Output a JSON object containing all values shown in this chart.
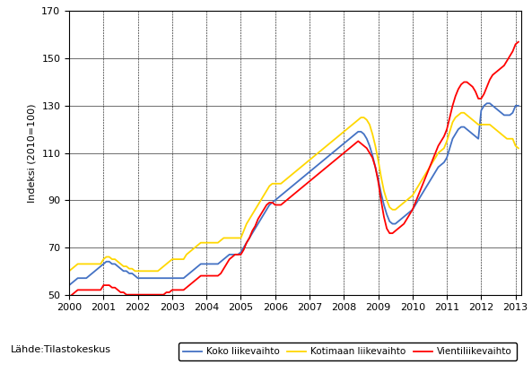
{
  "ylabel": "Indeksi (2010=100)",
  "source_label": "Lähde:Tilastokeskus",
  "ylim": [
    50,
    170
  ],
  "yticks": [
    50,
    70,
    90,
    110,
    130,
    150,
    170
  ],
  "xlim": [
    2000.0,
    2013.17
  ],
  "xticks": [
    2000,
    2001,
    2002,
    2003,
    2004,
    2005,
    2006,
    2007,
    2008,
    2009,
    2010,
    2011,
    2012,
    2013
  ],
  "line_colors": {
    "koko": "#4472C4",
    "kotimaan": "#FFD700",
    "vienti": "#FF0000"
  },
  "legend_labels": [
    "Koko liikevaihto",
    "Kotimaan liikevaihto",
    "Vientiliikevaihto"
  ],
  "koko_x": [
    2000.0,
    2000.083,
    2000.167,
    2000.25,
    2000.333,
    2000.417,
    2000.5,
    2000.583,
    2000.667,
    2000.75,
    2000.833,
    2000.917,
    2001.0,
    2001.083,
    2001.167,
    2001.25,
    2001.333,
    2001.417,
    2001.5,
    2001.583,
    2001.667,
    2001.75,
    2001.833,
    2001.917,
    2002.0,
    2002.083,
    2002.167,
    2002.25,
    2002.333,
    2002.417,
    2002.5,
    2002.583,
    2002.667,
    2002.75,
    2002.833,
    2002.917,
    2003.0,
    2003.083,
    2003.167,
    2003.25,
    2003.333,
    2003.417,
    2003.5,
    2003.583,
    2003.667,
    2003.75,
    2003.833,
    2003.917,
    2004.0,
    2004.083,
    2004.167,
    2004.25,
    2004.333,
    2004.417,
    2004.5,
    2004.583,
    2004.667,
    2004.75,
    2004.833,
    2004.917,
    2005.0,
    2005.083,
    2005.167,
    2005.25,
    2005.333,
    2005.417,
    2005.5,
    2005.583,
    2005.667,
    2005.75,
    2005.833,
    2005.917,
    2006.0,
    2006.083,
    2006.167,
    2006.25,
    2006.333,
    2006.417,
    2006.5,
    2006.583,
    2006.667,
    2006.75,
    2006.833,
    2006.917,
    2007.0,
    2007.083,
    2007.167,
    2007.25,
    2007.333,
    2007.417,
    2007.5,
    2007.583,
    2007.667,
    2007.75,
    2007.833,
    2007.917,
    2008.0,
    2008.083,
    2008.167,
    2008.25,
    2008.333,
    2008.417,
    2008.5,
    2008.583,
    2008.667,
    2008.75,
    2008.833,
    2008.917,
    2009.0,
    2009.083,
    2009.167,
    2009.25,
    2009.333,
    2009.417,
    2009.5,
    2009.583,
    2009.667,
    2009.75,
    2009.833,
    2009.917,
    2010.0,
    2010.083,
    2010.167,
    2010.25,
    2010.333,
    2010.417,
    2010.5,
    2010.583,
    2010.667,
    2010.75,
    2010.833,
    2010.917,
    2011.0,
    2011.083,
    2011.167,
    2011.25,
    2011.333,
    2011.417,
    2011.5,
    2011.583,
    2011.667,
    2011.75,
    2011.833,
    2011.917,
    2012.0,
    2012.083,
    2012.167,
    2012.25,
    2012.333,
    2012.417,
    2012.5,
    2012.583,
    2012.667,
    2012.75,
    2012.833,
    2012.917,
    2013.0,
    2013.083
  ],
  "koko_y": [
    54,
    55,
    56,
    57,
    57,
    57,
    57,
    58,
    59,
    60,
    61,
    62,
    63,
    64,
    64,
    63,
    63,
    62,
    61,
    60,
    60,
    59,
    59,
    58,
    57,
    57,
    57,
    57,
    57,
    57,
    57,
    57,
    57,
    57,
    57,
    57,
    57,
    57,
    57,
    57,
    57,
    58,
    59,
    60,
    61,
    62,
    63,
    63,
    63,
    63,
    63,
    63,
    63,
    64,
    65,
    66,
    67,
    67,
    67,
    67,
    68,
    70,
    72,
    74,
    76,
    78,
    80,
    82,
    84,
    86,
    88,
    89,
    90,
    91,
    92,
    93,
    94,
    95,
    96,
    97,
    98,
    99,
    100,
    101,
    102,
    103,
    104,
    105,
    106,
    107,
    108,
    109,
    110,
    111,
    112,
    113,
    114,
    115,
    116,
    117,
    118,
    119,
    119,
    118,
    116,
    113,
    109,
    104,
    99,
    93,
    88,
    84,
    81,
    80,
    80,
    81,
    82,
    83,
    84,
    85,
    86,
    88,
    90,
    92,
    94,
    96,
    98,
    100,
    102,
    104,
    105,
    106,
    108,
    112,
    116,
    118,
    120,
    121,
    121,
    120,
    119,
    118,
    117,
    116,
    128,
    130,
    131,
    131,
    130,
    129,
    128,
    127,
    126,
    126,
    126,
    127,
    130,
    130
  ],
  "kotimaan_y": [
    60,
    61,
    62,
    63,
    63,
    63,
    63,
    63,
    63,
    63,
    63,
    63,
    65,
    66,
    66,
    65,
    65,
    64,
    63,
    62,
    62,
    61,
    61,
    60,
    60,
    60,
    60,
    60,
    60,
    60,
    60,
    60,
    61,
    62,
    63,
    64,
    65,
    65,
    65,
    65,
    65,
    67,
    68,
    69,
    70,
    71,
    72,
    72,
    72,
    72,
    72,
    72,
    72,
    73,
    74,
    74,
    74,
    74,
    74,
    74,
    74,
    77,
    80,
    82,
    84,
    86,
    88,
    90,
    92,
    94,
    96,
    97,
    97,
    97,
    97,
    98,
    99,
    100,
    101,
    102,
    103,
    104,
    105,
    106,
    107,
    108,
    109,
    110,
    111,
    112,
    113,
    114,
    115,
    116,
    117,
    118,
    119,
    120,
    121,
    122,
    123,
    124,
    125,
    125,
    124,
    122,
    118,
    113,
    107,
    100,
    94,
    90,
    87,
    86,
    86,
    87,
    88,
    89,
    90,
    91,
    92,
    94,
    96,
    98,
    100,
    102,
    104,
    106,
    108,
    110,
    111,
    112,
    115,
    119,
    123,
    125,
    126,
    127,
    127,
    126,
    125,
    124,
    123,
    122,
    122,
    122,
    122,
    122,
    121,
    120,
    119,
    118,
    117,
    116,
    116,
    116,
    113,
    112
  ],
  "vienti_y": [
    49,
    50,
    51,
    52,
    52,
    52,
    52,
    52,
    52,
    52,
    52,
    52,
    54,
    54,
    54,
    53,
    53,
    52,
    51,
    51,
    50,
    50,
    50,
    50,
    50,
    50,
    50,
    50,
    50,
    50,
    50,
    50,
    50,
    50,
    51,
    51,
    52,
    52,
    52,
    52,
    52,
    53,
    54,
    55,
    56,
    57,
    58,
    58,
    58,
    58,
    58,
    58,
    58,
    59,
    61,
    63,
    65,
    66,
    67,
    67,
    67,
    69,
    72,
    74,
    77,
    79,
    82,
    84,
    86,
    88,
    89,
    89,
    88,
    88,
    88,
    89,
    90,
    91,
    92,
    93,
    94,
    95,
    96,
    97,
    98,
    99,
    100,
    101,
    102,
    103,
    104,
    105,
    106,
    107,
    108,
    109,
    110,
    111,
    112,
    113,
    114,
    115,
    114,
    113,
    112,
    110,
    108,
    104,
    98,
    90,
    83,
    78,
    76,
    76,
    77,
    78,
    79,
    80,
    82,
    84,
    86,
    89,
    92,
    95,
    98,
    101,
    104,
    107,
    110,
    113,
    115,
    117,
    120,
    125,
    130,
    134,
    137,
    139,
    140,
    140,
    139,
    138,
    136,
    133,
    133,
    135,
    138,
    141,
    143,
    144,
    145,
    146,
    147,
    149,
    151,
    153,
    156,
    157
  ]
}
